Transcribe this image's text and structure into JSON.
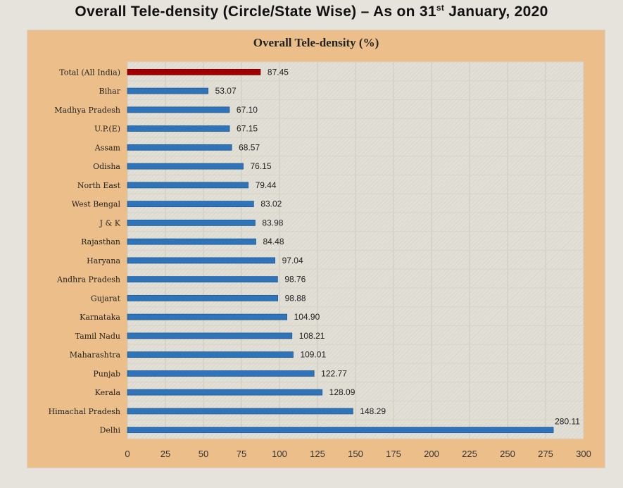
{
  "page_title": {
    "main": "Overall Tele-density (Circle/State Wise) – As on 31",
    "sup": "st",
    "tail": " January, 2020"
  },
  "chart_data": {
    "type": "bar",
    "orientation": "horizontal",
    "title": "Overall Tele-density (%)",
    "categories": [
      "Total (All India)",
      "Bihar",
      "Madhya Pradesh",
      "U.P.(E)",
      "Assam",
      "Odisha",
      "North East",
      "West Bengal",
      "J & K",
      "Rajasthan",
      "Haryana",
      "Andhra Pradesh",
      "Gujarat",
      "Karnataka",
      "Tamil Nadu",
      "Maharashtra",
      "Punjab",
      "Kerala",
      "Himachal Pradesh",
      "Delhi"
    ],
    "values": [
      87.45,
      53.07,
      67.1,
      67.15,
      68.57,
      76.15,
      79.44,
      83.02,
      83.98,
      84.48,
      97.04,
      98.76,
      98.88,
      104.9,
      108.21,
      109.01,
      122.77,
      128.09,
      148.29,
      280.11
    ],
    "value_labels": [
      "87.45",
      "53.07",
      "67.10",
      "67.15",
      "68.57",
      "76.15",
      "79.44",
      "83.02",
      "83.98",
      "84.48",
      "97.04",
      "98.76",
      "98.88",
      "104.90",
      "108.21",
      "109.01",
      "122.77",
      "128.09",
      "148.29",
      "280.11"
    ],
    "xlim": [
      0,
      300
    ],
    "xticks": [
      0,
      25,
      50,
      75,
      100,
      125,
      150,
      175,
      200,
      225,
      250,
      275,
      300
    ],
    "grid": true,
    "colors": {
      "highlight": "#a00000",
      "bars": "#2f74b8",
      "panel": "#ecbf8a",
      "plot": "#e2dfd6"
    }
  }
}
